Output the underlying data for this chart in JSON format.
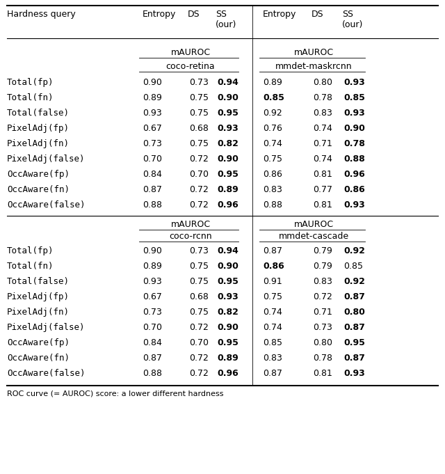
{
  "footnote": "ROC curve (= AUROC) score: a lower different hardness",
  "row_labels": [
    "Total(fp)",
    "Total(fn)",
    "Total(false)",
    "PixelAdj(fp)",
    "PixelAdj(fn)",
    "PixelAdj(false)",
    "OccAware(fp)",
    "OccAware(fn)",
    "OccAware(false)"
  ],
  "section1": {
    "coco_retina": {
      "Entropy": [
        "0.90",
        "0.89",
        "0.93",
        "0.67",
        "0.73",
        "0.70",
        "0.84",
        "0.87",
        "0.88"
      ],
      "DS": [
        "0.73",
        "0.75",
        "0.75",
        "0.68",
        "0.75",
        "0.72",
        "0.70",
        "0.72",
        "0.72"
      ],
      "SS": [
        "0.94",
        "0.90",
        "0.95",
        "0.93",
        "0.82",
        "0.90",
        "0.95",
        "0.89",
        "0.96"
      ]
    },
    "mmdet_maskrcnn": {
      "Entropy": [
        "0.89",
        "0.85",
        "0.92",
        "0.76",
        "0.74",
        "0.75",
        "0.86",
        "0.83",
        "0.88"
      ],
      "DS": [
        "0.80",
        "0.78",
        "0.83",
        "0.74",
        "0.71",
        "0.74",
        "0.81",
        "0.77",
        "0.81"
      ],
      "SS": [
        "0.93",
        "0.85",
        "0.93",
        "0.90",
        "0.78",
        "0.88",
        "0.96",
        "0.86",
        "0.93"
      ]
    }
  },
  "section2": {
    "coco_rcnn": {
      "Entropy": [
        "0.90",
        "0.89",
        "0.93",
        "0.67",
        "0.73",
        "0.70",
        "0.84",
        "0.87",
        "0.88"
      ],
      "DS": [
        "0.73",
        "0.75",
        "0.75",
        "0.68",
        "0.75",
        "0.72",
        "0.70",
        "0.72",
        "0.72"
      ],
      "SS": [
        "0.94",
        "0.90",
        "0.95",
        "0.93",
        "0.82",
        "0.90",
        "0.95",
        "0.89",
        "0.96"
      ]
    },
    "mmdet_cascade": {
      "Entropy": [
        "0.87",
        "0.86",
        "0.91",
        "0.75",
        "0.74",
        "0.74",
        "0.85",
        "0.83",
        "0.87"
      ],
      "DS": [
        "0.79",
        "0.79",
        "0.83",
        "0.72",
        "0.71",
        "0.73",
        "0.80",
        "0.78",
        "0.81"
      ],
      "SS": [
        "0.92",
        "0.85",
        "0.92",
        "0.87",
        "0.80",
        "0.87",
        "0.95",
        "0.87",
        "0.93"
      ]
    }
  },
  "bold_SS_s1_retina": [
    true,
    true,
    true,
    true,
    true,
    true,
    true,
    true,
    true
  ],
  "bold_E_s1_maskrcnn": [
    false,
    true,
    false,
    false,
    false,
    false,
    false,
    false,
    false
  ],
  "bold_SS_s1_maskrcnn": [
    true,
    true,
    true,
    true,
    true,
    true,
    true,
    true,
    true
  ],
  "bold_SS_s2_rcnn": [
    true,
    true,
    true,
    true,
    true,
    true,
    true,
    true,
    true
  ],
  "bold_E_s2_cascade": [
    false,
    true,
    false,
    false,
    false,
    false,
    false,
    false,
    false
  ],
  "bold_SS_s2_cascade": [
    true,
    false,
    true,
    true,
    true,
    true,
    true,
    true,
    true
  ],
  "bg_color": "#ffffff",
  "font_size": 9.0,
  "mono_font": "DejaVu Sans Mono",
  "norm_font": "DejaVu Sans"
}
